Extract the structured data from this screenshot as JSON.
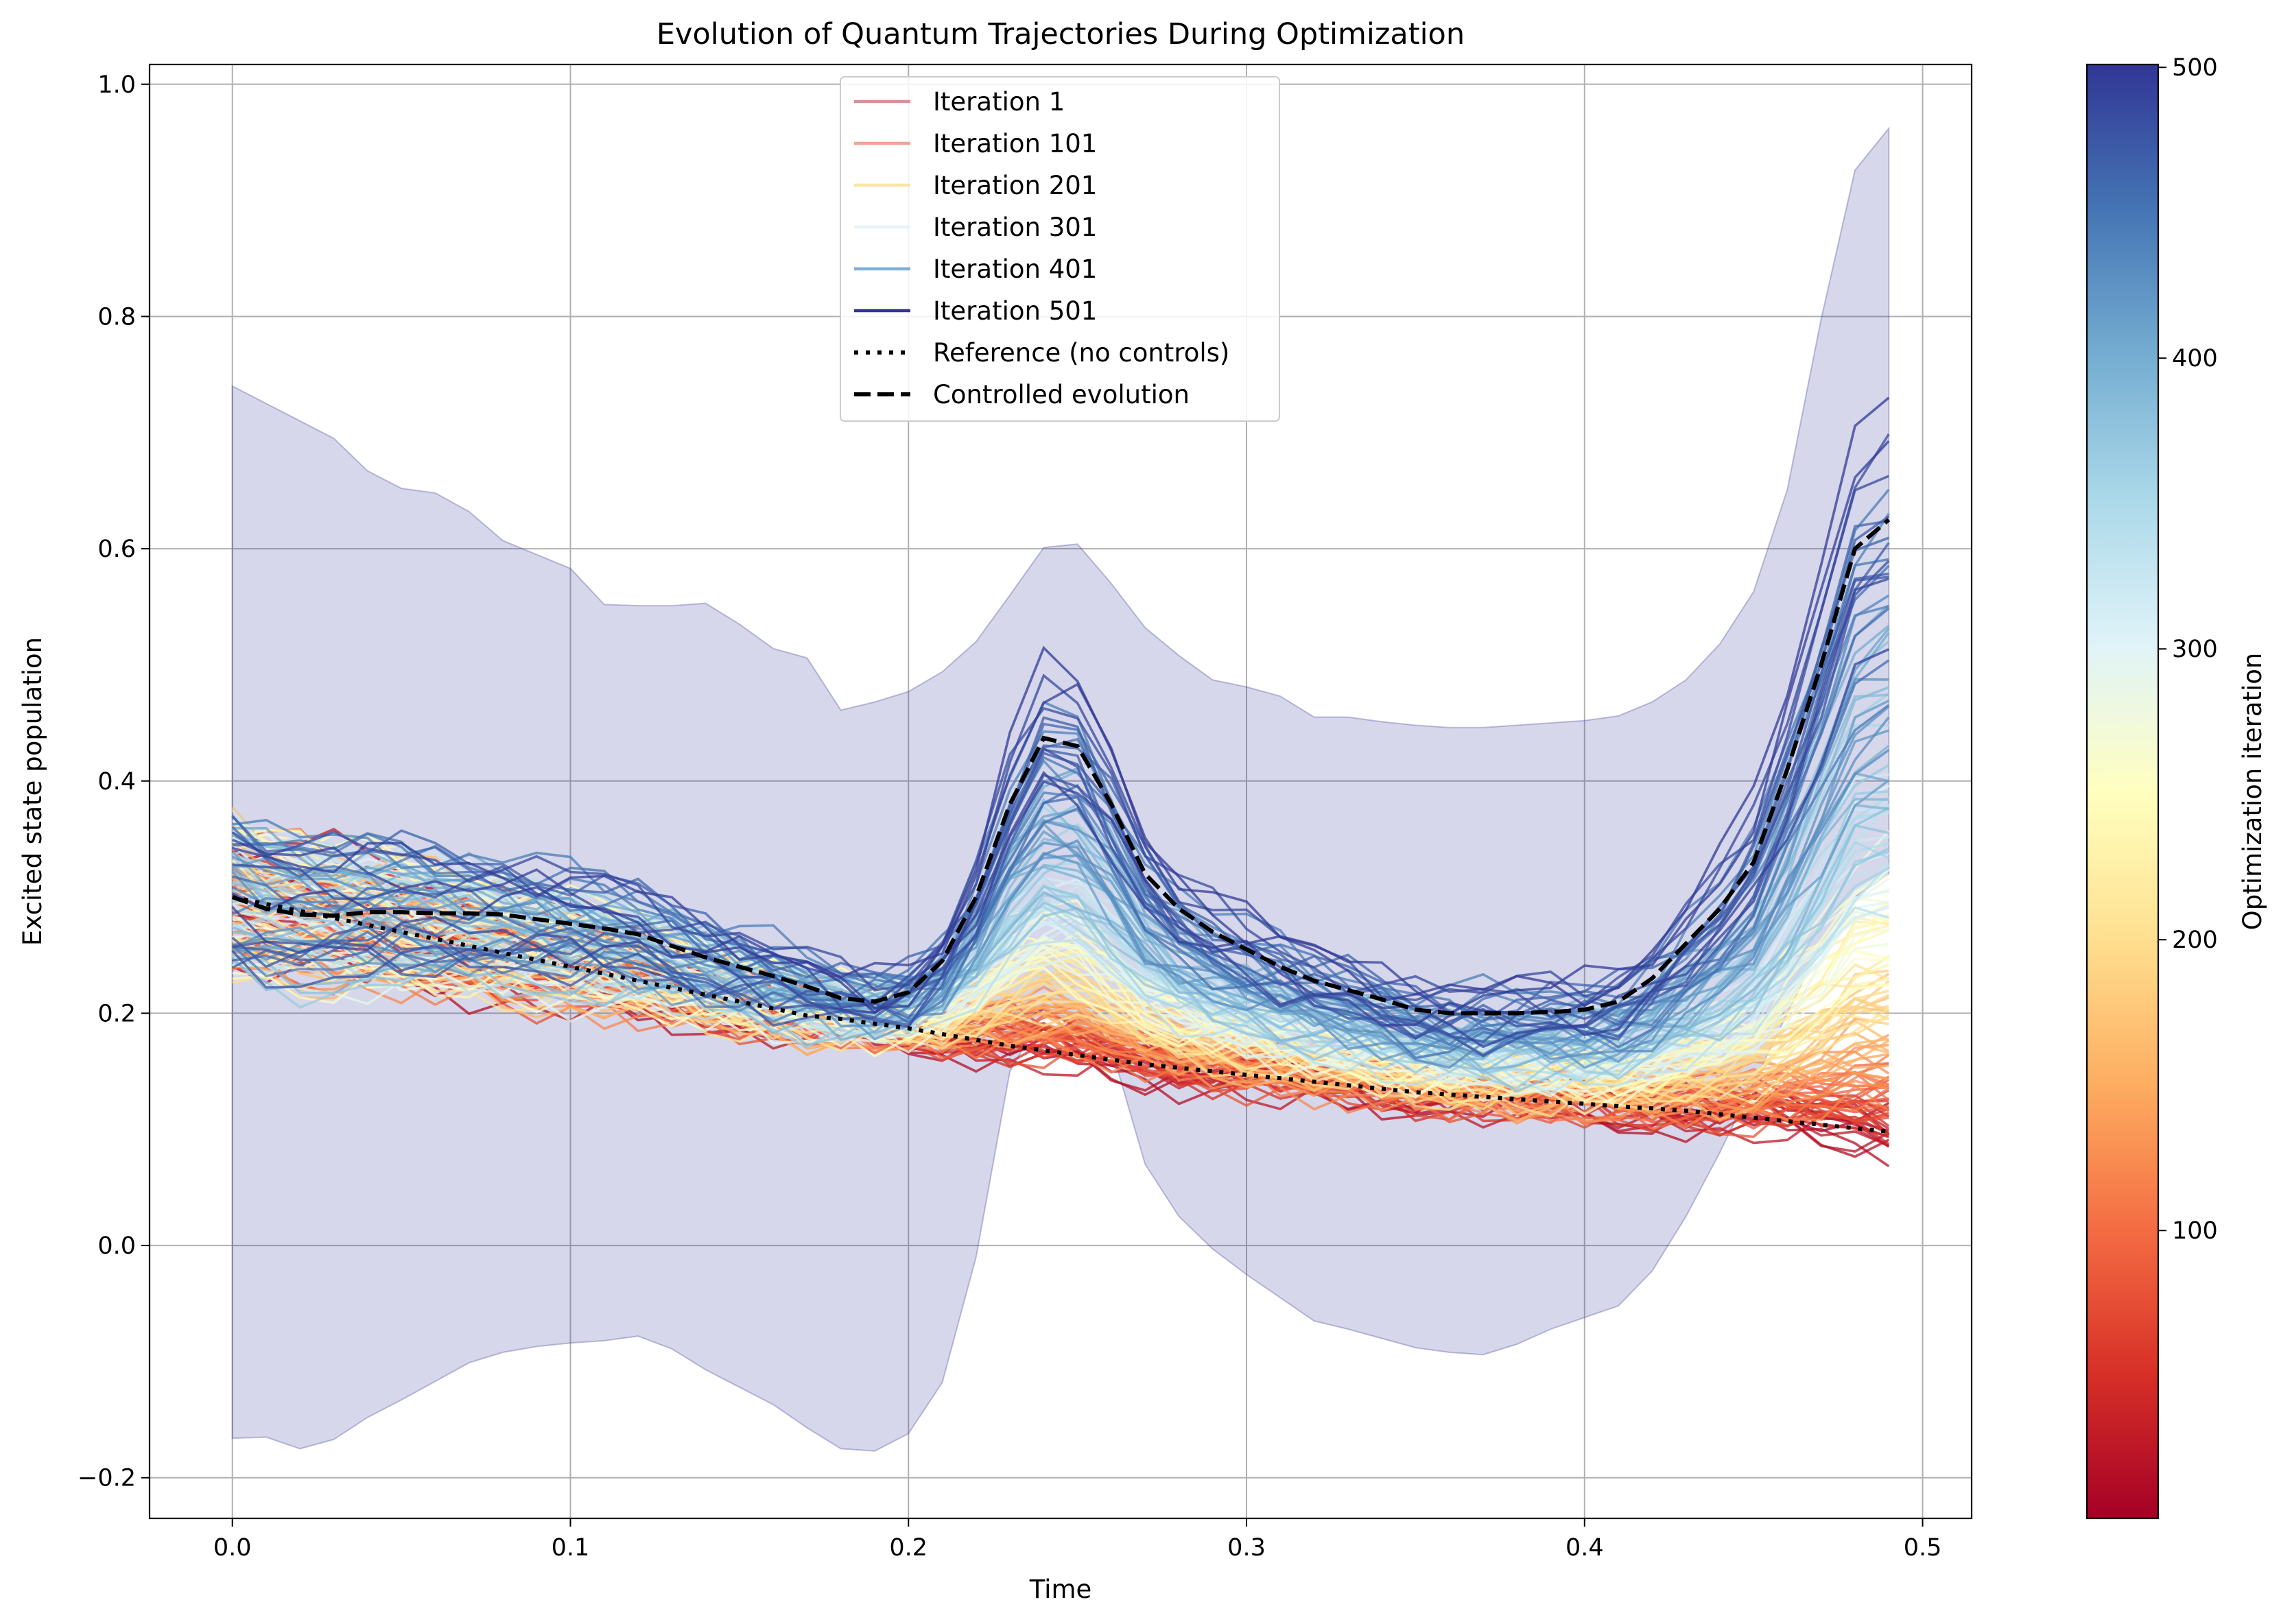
{
  "chart_data": {
    "type": "line",
    "title": "Evolution of Quantum Trajectories During Optimization",
    "xlabel": "Time",
    "ylabel": "Excited state population",
    "xlim": [
      -0.0245,
      0.5145
    ],
    "ylim": [
      -0.235,
      1.017
    ],
    "xticks": [
      "0.0",
      "0.1",
      "0.2",
      "0.3",
      "0.4",
      "0.5"
    ],
    "yticks": [
      "−0.2",
      "0.0",
      "0.2",
      "0.4",
      "0.6",
      "0.8",
      "1.0"
    ],
    "grid": true,
    "legend_position": "upper center",
    "legend": [
      {
        "label": "Iteration 1",
        "color": "#d7919c",
        "style": "solid"
      },
      {
        "label": "Iteration 101",
        "color": "#f1a493",
        "style": "solid"
      },
      {
        "label": "Iteration 201",
        "color": "#fbe5a6",
        "style": "solid"
      },
      {
        "label": "Iteration 301",
        "color": "#e4f4f7",
        "style": "solid"
      },
      {
        "label": "Iteration 401",
        "color": "#7fb0d4",
        "style": "solid"
      },
      {
        "label": "Iteration 501",
        "color": "#313695",
        "style": "solid"
      },
      {
        "label": "Reference (no controls)",
        "color": "#000000",
        "style": "dotted"
      },
      {
        "label": "Controlled evolution",
        "color": "#000000",
        "style": "dashed"
      }
    ],
    "colorbar": {
      "label": "Optimization iteration",
      "colormap": "RdYlBu",
      "min": 1,
      "max": 501,
      "ticks": [
        "100",
        "200",
        "300",
        "400",
        "500"
      ]
    },
    "x": [
      0.0,
      0.01,
      0.02,
      0.03,
      0.04,
      0.05,
      0.06,
      0.07,
      0.08,
      0.09,
      0.1,
      0.11,
      0.12,
      0.13,
      0.14,
      0.15,
      0.16,
      0.17,
      0.18,
      0.19,
      0.2,
      0.21,
      0.22,
      0.23,
      0.24,
      0.25,
      0.26,
      0.27,
      0.28,
      0.29,
      0.3,
      0.31,
      0.32,
      0.33,
      0.34,
      0.35,
      0.36,
      0.37,
      0.38,
      0.39,
      0.4,
      0.41,
      0.42,
      0.43,
      0.44,
      0.45,
      0.46,
      0.47,
      0.48,
      0.49
    ],
    "series": [
      {
        "name": "Reference (no controls)",
        "values": [
          0.3,
          0.294,
          0.288,
          0.282,
          0.276,
          0.27,
          0.264,
          0.258,
          0.252,
          0.246,
          0.24,
          0.234,
          0.228,
          0.222,
          0.216,
          0.21,
          0.204,
          0.198,
          0.195,
          0.191,
          0.187,
          0.182,
          0.177,
          0.172,
          0.168,
          0.164,
          0.16,
          0.156,
          0.153,
          0.15,
          0.147,
          0.144,
          0.141,
          0.138,
          0.135,
          0.132,
          0.13,
          0.128,
          0.126,
          0.124,
          0.122,
          0.12,
          0.118,
          0.116,
          0.113,
          0.11,
          0.107,
          0.104,
          0.101,
          0.098
        ]
      },
      {
        "name": "Controlled evolution",
        "values": [
          0.3,
          0.29,
          0.285,
          0.284,
          0.287,
          0.287,
          0.286,
          0.286,
          0.285,
          0.281,
          0.277,
          0.273,
          0.268,
          0.258,
          0.248,
          0.24,
          0.232,
          0.223,
          0.213,
          0.21,
          0.218,
          0.245,
          0.3,
          0.38,
          0.437,
          0.43,
          0.38,
          0.32,
          0.29,
          0.27,
          0.255,
          0.24,
          0.228,
          0.22,
          0.212,
          0.203,
          0.2,
          0.2,
          0.2,
          0.201,
          0.203,
          0.21,
          0.23,
          0.26,
          0.29,
          0.33,
          0.41,
          0.5,
          0.6,
          0.625
        ]
      }
    ],
    "band": {
      "upper": [
        0.74,
        0.725,
        0.71,
        0.695,
        0.667,
        0.652,
        0.648,
        0.632,
        0.607,
        0.595,
        0.583,
        0.552,
        0.551,
        0.551,
        0.553,
        0.535,
        0.514,
        0.506,
        0.461,
        0.468,
        0.477,
        0.494,
        0.52,
        0.56,
        0.601,
        0.604,
        0.57,
        0.532,
        0.508,
        0.487,
        0.481,
        0.473,
        0.455,
        0.455,
        0.451,
        0.448,
        0.446,
        0.446,
        0.448,
        0.45,
        0.452,
        0.456,
        0.468,
        0.487,
        0.518,
        0.563,
        0.651,
        0.798,
        0.926,
        0.962
      ],
      "lower": [
        -0.166,
        -0.165,
        -0.175,
        -0.167,
        -0.148,
        -0.133,
        -0.117,
        -0.101,
        -0.092,
        -0.087,
        -0.084,
        -0.082,
        -0.078,
        -0.089,
        -0.107,
        -0.122,
        -0.137,
        -0.157,
        -0.175,
        -0.177,
        -0.162,
        -0.118,
        -0.01,
        0.15,
        0.2,
        0.19,
        0.17,
        0.07,
        0.025,
        -0.003,
        -0.025,
        -0.045,
        -0.065,
        -0.072,
        -0.08,
        -0.088,
        -0.092,
        -0.094,
        -0.085,
        -0.072,
        -0.062,
        -0.052,
        -0.022,
        0.025,
        0.08,
        0.14,
        0.2,
        0.26,
        0.3,
        0.32
      ],
      "color": "#313695",
      "opacity": 0.2
    },
    "iteration_count": 501,
    "shown_every": 3
  }
}
